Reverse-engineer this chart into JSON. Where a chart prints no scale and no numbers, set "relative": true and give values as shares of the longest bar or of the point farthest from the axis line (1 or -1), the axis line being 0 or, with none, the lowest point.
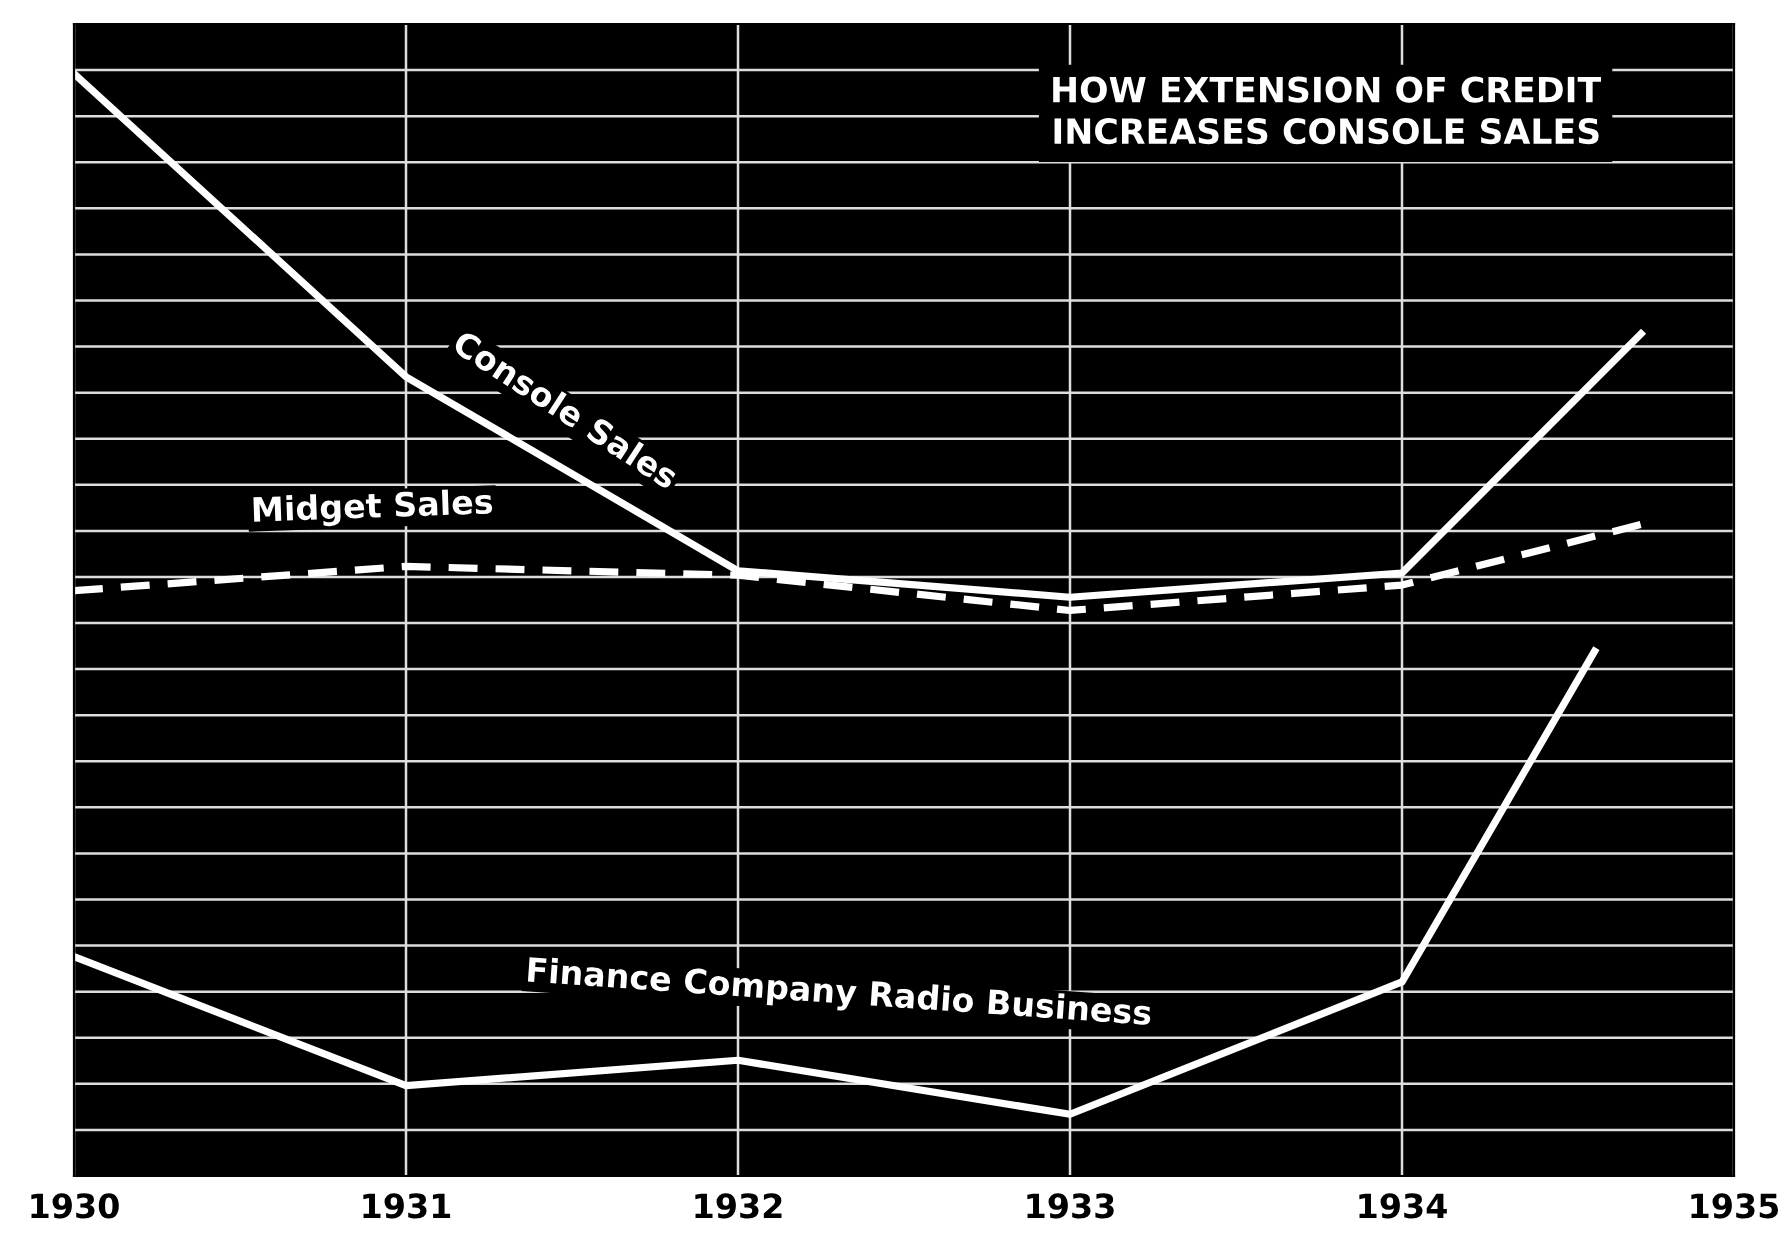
{
  "chart_data": {
    "type": "line",
    "title": "HOW EXTENSION OF CREDIT\nINCREASES CONSOLE SALES",
    "relative": true,
    "xlim": [
      1930,
      1935
    ],
    "xticks": [
      1930,
      1931,
      1932,
      1933,
      1934,
      1935
    ],
    "grid": true,
    "legend": false,
    "series": [
      {
        "name": "Console Sales",
        "color": "#ffffff",
        "line_style": "solid",
        "x": [
          1930,
          1931,
          1932,
          1933,
          1934,
          1934.72
        ],
        "values": [
          1.0,
          0.725,
          0.549,
          0.525,
          0.547,
          0.764
        ]
      },
      {
        "name": "Midget Sales",
        "color": "#ffffff",
        "line_style": "dashed",
        "x": [
          1930,
          1931,
          1932,
          1933,
          1934,
          1934.72
        ],
        "values": [
          0.531,
          0.553,
          0.545,
          0.513,
          0.536,
          0.591
        ]
      },
      {
        "name": "Finance Company Radio Business",
        "color": "#ffffff",
        "line_style": "solid",
        "x": [
          1930,
          1931,
          1932,
          1933,
          1934,
          1934.58
        ],
        "values": [
          0.199,
          0.082,
          0.105,
          0.056,
          0.176,
          0.476
        ]
      }
    ]
  }
}
